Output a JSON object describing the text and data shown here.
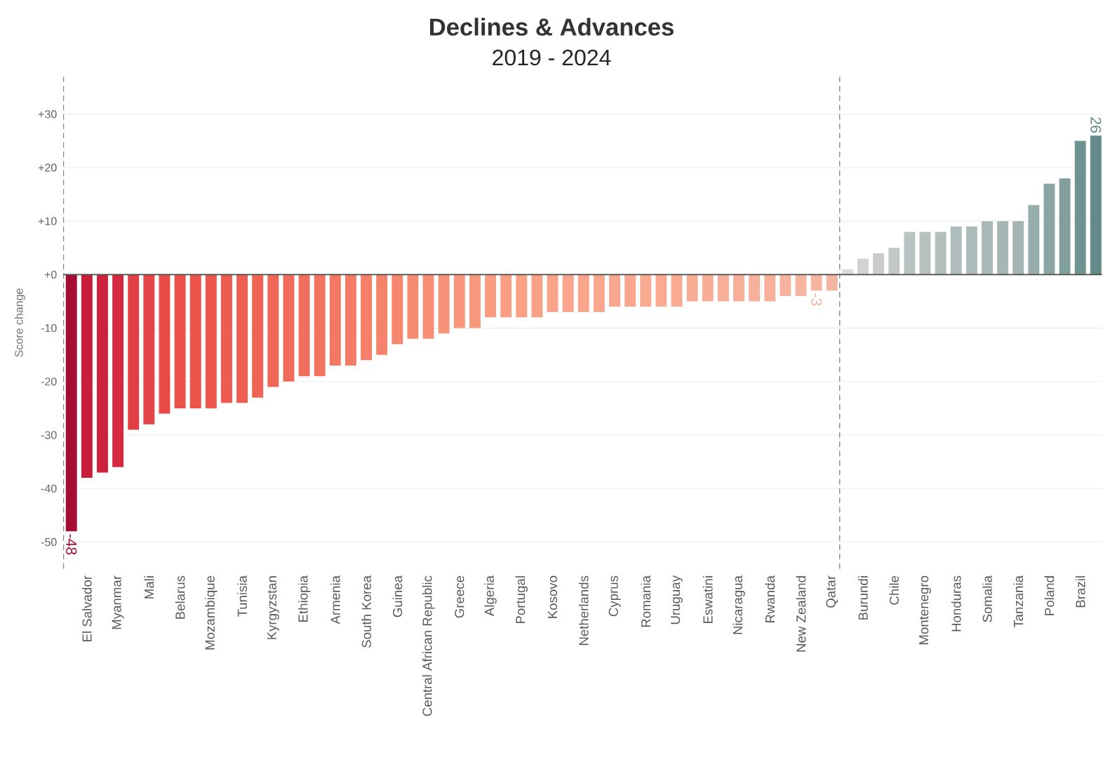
{
  "chart_data": {
    "type": "bar",
    "title": "Declines & Advances",
    "subtitle": "2019 - 2024",
    "ylabel": "Score change",
    "categories": [
      null,
      "El Salvador",
      null,
      "Myanmar",
      null,
      "Mali",
      null,
      "Belarus",
      null,
      "Mozambique",
      null,
      "Tunisia",
      null,
      "Kyrgyzstan",
      null,
      "Ethiopia",
      null,
      "Armenia",
      null,
      "South Korea",
      null,
      "Guinea",
      null,
      "Central African Republic",
      null,
      "Greece",
      null,
      "Algeria",
      null,
      "Portugal",
      null,
      "Kosovo",
      null,
      "Netherlands",
      null,
      "Cyprus",
      null,
      "Romania",
      null,
      "Uruguay",
      null,
      "Eswatini",
      null,
      "Nicaragua",
      null,
      "Rwanda",
      null,
      "New Zealand",
      null,
      "Qatar",
      null,
      "Burundi",
      null,
      "Chile",
      null,
      "Montenegro",
      null,
      "Honduras",
      null,
      "Somalia",
      null,
      "Tanzania",
      null,
      "Poland",
      null,
      "Brazil",
      null
    ],
    "values": [
      -48,
      -38,
      -37,
      -36,
      -29,
      -28,
      -26,
      -25,
      -25,
      -25,
      -24,
      -24,
      -23,
      -21,
      -20,
      -19,
      -19,
      -17,
      -17,
      -16,
      -15,
      -13,
      -12,
      -12,
      -11,
      -10,
      -10,
      -8,
      -8,
      -8,
      -8,
      -7,
      -7,
      -7,
      -7,
      -6,
      -6,
      -6,
      -6,
      -6,
      -5,
      -5,
      -5,
      -5,
      -5,
      -5,
      -4,
      -4,
      -3,
      -3,
      1,
      3,
      4,
      5,
      8,
      8,
      8,
      9,
      9,
      10,
      10,
      10,
      13,
      17,
      18,
      25,
      26
    ],
    "value_labels": [
      "-48",
      null,
      null,
      null,
      null,
      null,
      null,
      null,
      null,
      null,
      null,
      null,
      null,
      null,
      null,
      null,
      null,
      null,
      null,
      null,
      null,
      null,
      null,
      null,
      null,
      null,
      null,
      null,
      null,
      null,
      null,
      null,
      null,
      null,
      null,
      null,
      null,
      null,
      null,
      null,
      null,
      null,
      null,
      null,
      null,
      null,
      null,
      null,
      "-3",
      null,
      null,
      null,
      null,
      null,
      null,
      null,
      null,
      null,
      null,
      null,
      null,
      null,
      null,
      null,
      null,
      null,
      "26"
    ],
    "colors": [
      "#a50e34",
      "#c81d3b",
      "#cc223d",
      "#d42a40",
      "#e03f45",
      "#e44548",
      "#e84a48",
      "#eb5049",
      "#ec544a",
      "#ed574c",
      "#ee5b4f",
      "#ef5f51",
      "#ef6354",
      "#f06757",
      "#f06b5a",
      "#f16f5d",
      "#f27360",
      "#f37763",
      "#f47b66",
      "#f57f69",
      "#f5836c",
      "#f6876f",
      "#f68b72",
      "#f78f75",
      "#f79378",
      "#f8967b",
      "#f8997e",
      "#f99c81",
      "#f99e83",
      "#f9a085",
      "#f9a187",
      "#f9a389",
      "#f9a48b",
      "#f9a58c",
      "#f9a68d",
      "#f9a78e",
      "#f9a88f",
      "#f9a990",
      "#f9aa91",
      "#f9ab92",
      "#f8ac94",
      "#f8ad96",
      "#f8ae97",
      "#f8af98",
      "#f7b09a",
      "#f7b19b",
      "#f6b29d",
      "#f6b39e",
      "#f5b4a0",
      "#f4b5a3",
      "#dcd9d6",
      "#d2d3d1",
      "#c9ccca",
      "#c1c8c6",
      "#b9c3c1",
      "#b6c0bf",
      "#b3bebd",
      "#afbcbb",
      "#acbab9",
      "#a9b8b7",
      "#a6b6b5",
      "#a3b4b3",
      "#97aeac",
      "#8aa6a4",
      "#809f9d",
      "#6e9391",
      "#628b89"
    ],
    "ylim": [
      -55,
      37
    ],
    "yticks": [
      {
        "value": 30,
        "label": "+30"
      },
      {
        "value": 20,
        "label": "+20"
      },
      {
        "value": 10,
        "label": "+10"
      },
      {
        "value": 0,
        "label": "+0"
      },
      -10,
      -20,
      -30,
      -40,
      -50
    ],
    "grid": "y"
  }
}
